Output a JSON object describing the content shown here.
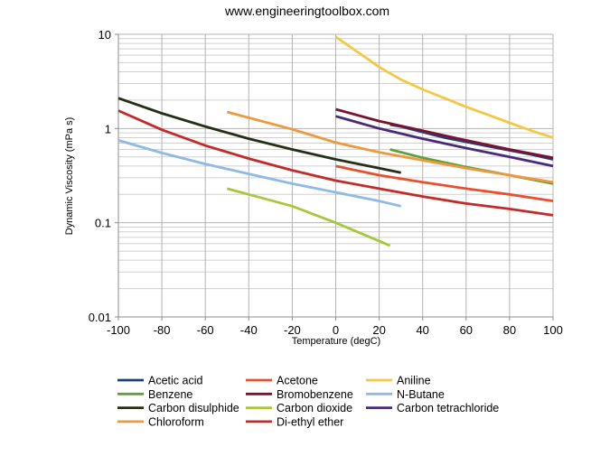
{
  "chart_data": {
    "type": "line",
    "title": "www.engineeringtoolbox.com",
    "xlabel": "Temperature (degC)",
    "ylabel": "Dynamic Viscosity (mPa s)",
    "xlim": [
      -100,
      100
    ],
    "ylim": [
      0.01,
      10
    ],
    "y_scale": "log",
    "x_ticks": [
      -100,
      -80,
      -60,
      -40,
      -20,
      0,
      20,
      40,
      60,
      80,
      100
    ],
    "x_tick_labels": [
      "-100",
      "-80",
      "-60",
      "-40",
      "-20",
      "0",
      "20",
      "40",
      "60",
      "80",
      "100"
    ],
    "y_ticks": [
      0.01,
      0.1,
      1,
      10
    ],
    "y_tick_labels": [
      "0.01",
      "0.1",
      "1",
      "10"
    ],
    "grid": true,
    "legend_position": "bottom",
    "series": [
      {
        "name": "Acetic acid",
        "color": "#1f3f7a",
        "points": [
          [
            25,
            1.1
          ],
          [
            30,
            1.05
          ],
          [
            50,
            0.8
          ],
          [
            70,
            0.65
          ],
          [
            90,
            0.53
          ],
          [
            100,
            0.47
          ]
        ]
      },
      {
        "name": "Acetone",
        "color": "#e8502d",
        "points": [
          [
            0,
            0.4
          ],
          [
            20,
            0.32
          ],
          [
            40,
            0.27
          ],
          [
            60,
            0.23
          ],
          [
            80,
            0.2
          ],
          [
            100,
            0.17
          ]
        ]
      },
      {
        "name": "Aniline",
        "color": "#f5c842",
        "points": [
          [
            0,
            9.4
          ],
          [
            10,
            6.5
          ],
          [
            20,
            4.5
          ],
          [
            30,
            3.3
          ],
          [
            40,
            2.6
          ],
          [
            50,
            2.1
          ],
          [
            60,
            1.7
          ],
          [
            70,
            1.4
          ],
          [
            80,
            1.15
          ],
          [
            90,
            0.95
          ],
          [
            100,
            0.8
          ]
        ]
      },
      {
        "name": "Benzene",
        "color": "#5fa03a",
        "points": [
          [
            25,
            0.6
          ],
          [
            40,
            0.49
          ],
          [
            60,
            0.39
          ],
          [
            80,
            0.32
          ],
          [
            100,
            0.26
          ]
        ]
      },
      {
        "name": "Bromobenzene",
        "color": "#7a1230",
        "points": [
          [
            0,
            1.6
          ],
          [
            20,
            1.2
          ],
          [
            40,
            0.95
          ],
          [
            60,
            0.75
          ],
          [
            80,
            0.6
          ],
          [
            100,
            0.49
          ]
        ]
      },
      {
        "name": "N-Butane",
        "color": "#8fb9e6",
        "points": [
          [
            -100,
            0.75
          ],
          [
            -80,
            0.55
          ],
          [
            -60,
            0.42
          ],
          [
            -40,
            0.33
          ],
          [
            -20,
            0.26
          ],
          [
            0,
            0.21
          ],
          [
            20,
            0.17
          ],
          [
            30,
            0.15
          ]
        ]
      },
      {
        "name": "Carbon disulphide",
        "color": "#243016",
        "points": [
          [
            -100,
            2.1
          ],
          [
            -80,
            1.45
          ],
          [
            -60,
            1.05
          ],
          [
            -40,
            0.78
          ],
          [
            -20,
            0.6
          ],
          [
            0,
            0.47
          ],
          [
            20,
            0.38
          ],
          [
            30,
            0.34
          ]
        ]
      },
      {
        "name": "Carbon dioxide",
        "color": "#a8c83c",
        "points": [
          [
            -50,
            0.23
          ],
          [
            -40,
            0.2
          ],
          [
            -20,
            0.15
          ],
          [
            0,
            0.1
          ],
          [
            10,
            0.08
          ],
          [
            20,
            0.064
          ],
          [
            25,
            0.057
          ]
        ]
      },
      {
        "name": "Carbon tetrachloride",
        "color": "#4a2a7a",
        "points": [
          [
            0,
            1.35
          ],
          [
            20,
            1.0
          ],
          [
            40,
            0.78
          ],
          [
            60,
            0.62
          ],
          [
            80,
            0.5
          ],
          [
            100,
            0.4
          ]
        ]
      },
      {
        "name": "Chloroform",
        "color": "#f0983c",
        "points": [
          [
            -50,
            1.5
          ],
          [
            -40,
            1.3
          ],
          [
            -20,
            0.98
          ],
          [
            0,
            0.71
          ],
          [
            20,
            0.56
          ],
          [
            40,
            0.46
          ],
          [
            60,
            0.38
          ],
          [
            80,
            0.32
          ],
          [
            100,
            0.27
          ]
        ]
      },
      {
        "name": "Di-ethyl ether",
        "color": "#c42a2a",
        "points": [
          [
            -100,
            1.55
          ],
          [
            -80,
            0.97
          ],
          [
            -60,
            0.66
          ],
          [
            -40,
            0.48
          ],
          [
            -20,
            0.36
          ],
          [
            0,
            0.28
          ],
          [
            20,
            0.23
          ],
          [
            40,
            0.19
          ],
          [
            60,
            0.16
          ],
          [
            80,
            0.14
          ],
          [
            100,
            0.12
          ]
        ]
      }
    ]
  }
}
